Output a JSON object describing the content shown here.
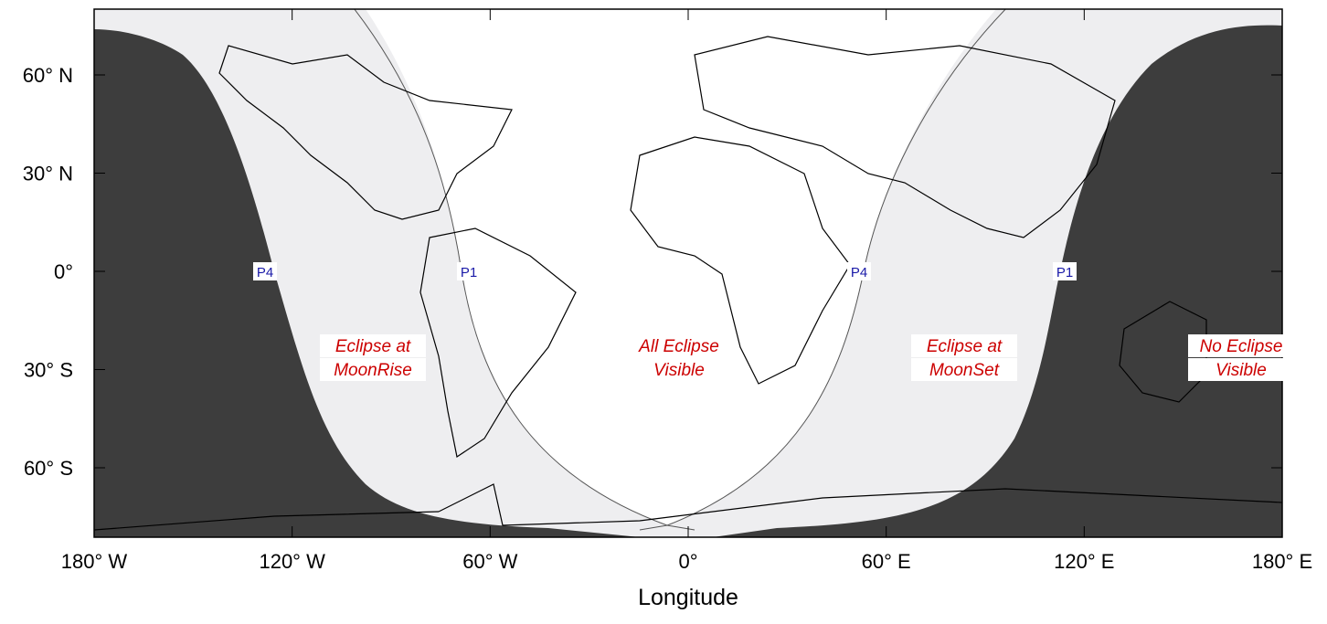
{
  "map": {
    "x_axis": {
      "label": "Longitude",
      "ticks": [
        {
          "value": -180,
          "label": "180° W"
        },
        {
          "value": -120,
          "label": "120° W"
        },
        {
          "value": -60,
          "label": "60° W"
        },
        {
          "value": 0,
          "label": "0°"
        },
        {
          "value": 60,
          "label": "60° E"
        },
        {
          "value": 120,
          "label": "120° E"
        },
        {
          "value": 180,
          "label": "180° E"
        }
      ]
    },
    "y_axis": {
      "ticks": [
        {
          "value": 60,
          "label": "60° N"
        },
        {
          "value": 30,
          "label": "30° N"
        },
        {
          "value": 0,
          "label": "0°"
        },
        {
          "value": -30,
          "label": "30° S"
        },
        {
          "value": -60,
          "label": "60° S"
        }
      ]
    },
    "regions": [
      {
        "lines": [
          "Eclipse at",
          "MoonRise"
        ]
      },
      {
        "lines": [
          "All Eclipse",
          "Visible"
        ]
      },
      {
        "lines": [
          "Eclipse at",
          "MoonSet"
        ]
      },
      {
        "lines": [
          "No Eclipse",
          "Visible"
        ]
      }
    ],
    "contacts": [
      "P4",
      "P1",
      "P4",
      "P1"
    ]
  }
}
